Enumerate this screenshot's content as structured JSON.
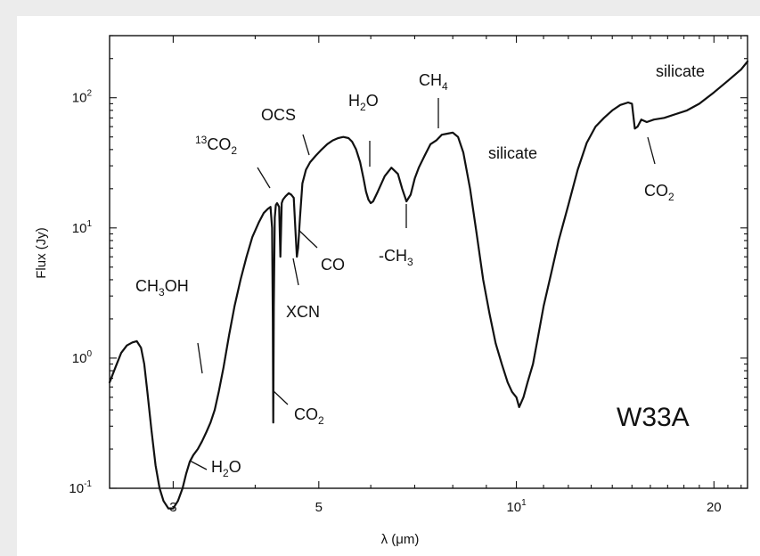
{
  "chart_data": {
    "type": "line",
    "title": "",
    "panel_label": "W33A",
    "xlabel": "λ (μm)",
    "ylabel": "Flux (Jy)",
    "x_scale": "log",
    "y_scale": "log",
    "xlim": [
      2.4,
      22.5
    ],
    "ylim": [
      0.1,
      300
    ],
    "x_ticks": [
      {
        "value": 3,
        "label": "3"
      },
      {
        "value": 5,
        "label": "5"
      },
      {
        "value": 10,
        "label": "10",
        "exp": "1"
      },
      {
        "value": 20,
        "label": "20"
      }
    ],
    "y_ticks": [
      {
        "value": 0.1,
        "label": "10",
        "exp": "-1"
      },
      {
        "value": 1,
        "label": "10",
        "exp": "0"
      },
      {
        "value": 10,
        "label": "10",
        "exp": "1"
      },
      {
        "value": 100,
        "label": "10",
        "exp": "2"
      }
    ],
    "grid": false,
    "series": [
      {
        "x": [
          2.4,
          2.45,
          2.5,
          2.55,
          2.6,
          2.64,
          2.68,
          2.71,
          2.74,
          2.78,
          2.82,
          2.86,
          2.9,
          2.95,
          3.0,
          3.05,
          3.1,
          3.14,
          3.18,
          3.22,
          3.27,
          3.32,
          3.37,
          3.42,
          3.47,
          3.52,
          3.58,
          3.65,
          3.72,
          3.8,
          3.88,
          3.96,
          4.05,
          4.12,
          4.18,
          4.22,
          4.245,
          4.255,
          4.262,
          4.27,
          4.285,
          4.3,
          4.32,
          4.35,
          4.37,
          4.39,
          4.41,
          4.45,
          4.5,
          4.54,
          4.58,
          4.61,
          4.63,
          4.65,
          4.68,
          4.72,
          4.78,
          4.85,
          4.95,
          5.05,
          5.15,
          5.25,
          5.35,
          5.45,
          5.55,
          5.62,
          5.7,
          5.78,
          5.85,
          5.9,
          5.95,
          6.0,
          6.05,
          6.15,
          6.3,
          6.45,
          6.6,
          6.7,
          6.8,
          6.9,
          7.0,
          7.1,
          7.25,
          7.4,
          7.55,
          7.7,
          7.85,
          8.0,
          8.15,
          8.3,
          8.5,
          8.7,
          8.9,
          9.1,
          9.3,
          9.5,
          9.7,
          9.85,
          10.0,
          10.1,
          10.25,
          10.4,
          10.6,
          10.8,
          11.0,
          11.3,
          11.6,
          12.0,
          12.4,
          12.8,
          13.2,
          13.6,
          14.0,
          14.4,
          14.8,
          15.0,
          15.15,
          15.3,
          15.5,
          15.8,
          16.2,
          16.8,
          17.5,
          18.2,
          19.0,
          20.0,
          21.0,
          22.0,
          22.5
        ],
        "y": [
          0.65,
          0.85,
          1.1,
          1.25,
          1.32,
          1.35,
          1.2,
          0.9,
          0.55,
          0.28,
          0.15,
          0.1,
          0.08,
          0.07,
          0.07,
          0.08,
          0.1,
          0.13,
          0.16,
          0.18,
          0.2,
          0.23,
          0.27,
          0.32,
          0.4,
          0.55,
          0.85,
          1.5,
          2.5,
          4.0,
          6.0,
          8.5,
          11.0,
          13.0,
          14.0,
          14.5,
          10.0,
          2.0,
          0.32,
          2.5,
          12.0,
          15.0,
          15.5,
          14.5,
          6.0,
          15.5,
          16.5,
          17.5,
          18.5,
          18.0,
          17.0,
          9.0,
          6.0,
          7.0,
          12.0,
          22.0,
          28.0,
          32.0,
          36.0,
          40.0,
          44.0,
          47.0,
          49.0,
          50.0,
          49.0,
          46.0,
          40.0,
          32.0,
          24.0,
          19.0,
          16.5,
          15.5,
          16.0,
          19.0,
          25.0,
          29.0,
          26.0,
          20.0,
          16.0,
          18.0,
          24.0,
          29.0,
          36.0,
          44.0,
          47.0,
          52.0,
          53.0,
          54.0,
          50.0,
          38.0,
          20.0,
          9.0,
          4.0,
          2.2,
          1.3,
          0.9,
          0.65,
          0.55,
          0.5,
          0.42,
          0.5,
          0.65,
          0.9,
          1.5,
          2.5,
          4.5,
          8.0,
          15.0,
          28.0,
          45.0,
          60.0,
          70.0,
          80.0,
          88.0,
          92.0,
          90.0,
          58.0,
          60.0,
          68.0,
          65.0,
          68.0,
          70.0,
          75.0,
          80.0,
          90.0,
          110.0,
          135.0,
          165.0,
          190.0
        ]
      }
    ],
    "annotations": [
      {
        "text": "CH",
        "sub": "3",
        "text2": "OH",
        "wave": 3.4
      },
      {
        "text": "H",
        "sub": "2",
        "text2": "O",
        "wave": 3.1
      },
      {
        "text": "",
        "sup": "13",
        "text2": "CO",
        "sub2": "2",
        "wave": 4.39
      },
      {
        "text": "CO",
        "sub": "2",
        "text2": "",
        "wave": 4.262
      },
      {
        "text": "XCN",
        "wave": 4.62
      },
      {
        "text": "OCS",
        "wave": 4.9
      },
      {
        "text": "CO",
        "wave": 4.67
      },
      {
        "text": "H",
        "sub": "2",
        "text2": "O",
        "wave": 6.05
      },
      {
        "text": "-CH",
        "sub": "3",
        "text2": "",
        "wave": 6.85
      },
      {
        "text": "CH",
        "sub": "4",
        "text2": "",
        "wave": 7.7
      },
      {
        "text": "silicate",
        "wave": 9.7
      },
      {
        "text": "CO",
        "sub": "2",
        "text2": "",
        "wave": 15.15
      },
      {
        "text": "silicate",
        "wave": 18.0
      }
    ]
  }
}
